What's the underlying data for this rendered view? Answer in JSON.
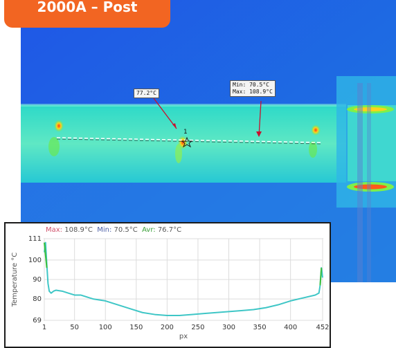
{
  "badge": {
    "label": "2000A – Post"
  },
  "thermal_image": {
    "callout_point": "77.2°C",
    "callout_line": "Min: 70.5°C\nMax: 108.9°C",
    "marker_label": "1"
  },
  "profile": {
    "stats": {
      "max_key": "Max:",
      "max_value": "108.9°C",
      "min_key": "Min:",
      "min_value": "70.5°C",
      "avr_key": "Avr:",
      "avr_value": "76.7°C"
    }
  },
  "chart_data": {
    "type": "line",
    "title": "",
    "xlabel": "px",
    "ylabel": "Temperature °C",
    "xlim": [
      1,
      452
    ],
    "ylim": [
      69,
      111
    ],
    "x_ticks": [
      1,
      50,
      100,
      150,
      200,
      250,
      300,
      350,
      400,
      452
    ],
    "y_ticks": [
      69,
      80,
      90,
      100,
      111
    ],
    "grid": true,
    "series": [
      {
        "color": "#3ec6c6",
        "x": [
          1,
          3,
          5,
          7,
          9,
          12,
          16,
          20,
          30,
          40,
          50,
          60,
          80,
          100,
          120,
          140,
          160,
          180,
          200,
          220,
          240,
          260,
          280,
          300,
          320,
          340,
          360,
          380,
          400,
          420,
          440,
          446,
          448,
          450,
          452
        ],
        "y": [
          104,
          109,
          98,
          88,
          84,
          83,
          84,
          84.5,
          84,
          83,
          82,
          82,
          80,
          79,
          77,
          75,
          73,
          72,
          71.5,
          71.5,
          72,
          72.5,
          73,
          73.5,
          74,
          74.5,
          75.5,
          77,
          79,
          80.5,
          82,
          83,
          87,
          96,
          91
        ]
      }
    ]
  }
}
